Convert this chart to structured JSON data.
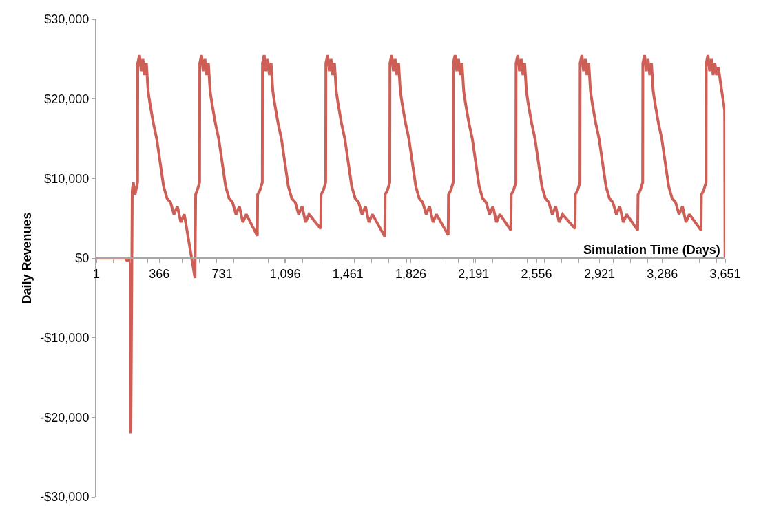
{
  "chart_data": {
    "type": "line",
    "xlabel": "Simulation Time (Days)",
    "ylabel": "Daily Revenues",
    "xlim": [
      1,
      3651
    ],
    "xticks": [
      1,
      366,
      731,
      {
        "value": 1096,
        "label": "1,096"
      },
      {
        "value": 1461,
        "label": "1,461"
      },
      {
        "value": 1826,
        "label": "1,826"
      },
      {
        "value": 2191,
        "label": "2,191"
      },
      {
        "value": 2556,
        "label": "2,556"
      },
      {
        "value": 2921,
        "label": "2,921"
      },
      {
        "value": 3286,
        "label": "3,286"
      },
      {
        "value": 3651,
        "label": "3,651"
      }
    ],
    "ylim": [
      -30000,
      30000
    ],
    "yticks": [
      {
        "value": -30000,
        "label": "-$30,000"
      },
      {
        "value": -20000,
        "label": "-$20,000"
      },
      {
        "value": -10000,
        "label": "-$10,000"
      },
      {
        "value": 0,
        "label": "$0"
      },
      {
        "value": 10000,
        "label": "$10,000"
      },
      {
        "value": 20000,
        "label": "$20,000"
      },
      {
        "value": 30000,
        "label": "$30,000"
      }
    ],
    "marker": "none",
    "line_style": "solid",
    "series": [
      {
        "color": "#cd5f57",
        "x": [
          1,
          170,
          180,
          190,
          200,
          201,
          209,
          215,
          225,
          240,
          241,
          251,
          261,
          271,
          281,
          291,
          301,
          311,
          331,
          351,
          371,
          391,
          411,
          431,
          451,
          471,
          491,
          511,
          573,
          577,
          586,
          600,
          601,
          611,
          621,
          631,
          641,
          651,
          661,
          671,
          691,
          711,
          731,
          751,
          771,
          791,
          811,
          831,
          851,
          871,
          935,
          937,
          950,
          964,
          965,
          975,
          985,
          995,
          1005,
          1015,
          1025,
          1035,
          1055,
          1075,
          1095,
          1115,
          1135,
          1155,
          1175,
          1195,
          1215,
          1235,
          1303,
          1305,
          1318,
          1332,
          1333,
          1343,
          1353,
          1363,
          1373,
          1383,
          1393,
          1403,
          1423,
          1443,
          1463,
          1483,
          1503,
          1523,
          1543,
          1563,
          1583,
          1603,
          1675,
          1677,
          1690,
          1704,
          1705,
          1715,
          1725,
          1735,
          1745,
          1755,
          1765,
          1775,
          1795,
          1815,
          1835,
          1855,
          1875,
          1895,
          1915,
          1935,
          1955,
          1975,
          2043,
          2045,
          2058,
          2072,
          2073,
          2083,
          2093,
          2103,
          2113,
          2123,
          2133,
          2143,
          2163,
          2183,
          2203,
          2223,
          2243,
          2263,
          2283,
          2303,
          2323,
          2343,
          2407,
          2409,
          2422,
          2436,
          2437,
          2447,
          2457,
          2467,
          2477,
          2487,
          2497,
          2507,
          2527,
          2547,
          2567,
          2587,
          2607,
          2627,
          2647,
          2667,
          2687,
          2707,
          2779,
          2781,
          2794,
          2808,
          2809,
          2819,
          2829,
          2839,
          2849,
          2859,
          2869,
          2879,
          2899,
          2919,
          2939,
          2959,
          2979,
          2999,
          3019,
          3039,
          3059,
          3079,
          3143,
          3145,
          3158,
          3172,
          3173,
          3183,
          3193,
          3203,
          3213,
          3223,
          3233,
          3243,
          3263,
          3283,
          3303,
          3323,
          3343,
          3363,
          3383,
          3403,
          3423,
          3443,
          3511,
          3513,
          3526,
          3540,
          3541,
          3551,
          3561,
          3571,
          3581,
          3591,
          3601,
          3611,
          3631,
          3645,
          3648,
          3650
        ],
        "values": [
          0,
          0,
          -400,
          0,
          0,
          -22000,
          8500,
          9500,
          8000,
          9500,
          24500,
          25500,
          23500,
          25000,
          23000,
          24500,
          21000,
          19500,
          17000,
          15000,
          12000,
          9000,
          7500,
          7000,
          5500,
          6500,
          4500,
          5500,
          -2500,
          8000,
          8500,
          9500,
          24500,
          25500,
          23500,
          25000,
          23000,
          24500,
          21000,
          19500,
          17000,
          15000,
          12000,
          9000,
          7500,
          7000,
          5500,
          6500,
          4500,
          5500,
          2800,
          8000,
          8500,
          9500,
          24500,
          25500,
          23500,
          25000,
          23000,
          24500,
          21000,
          19500,
          17000,
          15000,
          12000,
          9000,
          7500,
          7000,
          5500,
          6500,
          4500,
          5500,
          3700,
          8000,
          8500,
          9500,
          24500,
          25500,
          23500,
          25000,
          23000,
          24500,
          21000,
          19500,
          17000,
          15000,
          12000,
          9000,
          7500,
          7000,
          5500,
          6500,
          4500,
          5500,
          2700,
          8000,
          8500,
          9500,
          24500,
          25500,
          23500,
          25000,
          23000,
          24500,
          21000,
          19500,
          17000,
          15000,
          12000,
          9000,
          7500,
          7000,
          5500,
          6500,
          4500,
          5500,
          2900,
          8000,
          8500,
          9500,
          24500,
          25500,
          23500,
          25000,
          23000,
          24500,
          21000,
          19500,
          17000,
          15000,
          12000,
          9000,
          7500,
          7000,
          5500,
          6500,
          4500,
          5500,
          3500,
          8000,
          8500,
          9500,
          24500,
          25500,
          23500,
          25000,
          23000,
          24500,
          21000,
          19500,
          17000,
          15000,
          12000,
          9000,
          7500,
          7000,
          5500,
          6500,
          4500,
          5500,
          3700,
          8000,
          8500,
          9500,
          24500,
          25500,
          23500,
          25000,
          23000,
          24500,
          21000,
          19500,
          17000,
          15000,
          12000,
          9000,
          7500,
          7000,
          5500,
          6500,
          4500,
          5500,
          3500,
          8000,
          8500,
          9500,
          24500,
          25500,
          23500,
          25000,
          23000,
          24500,
          21000,
          19500,
          17000,
          15000,
          12000,
          9000,
          7500,
          7000,
          5500,
          6500,
          4500,
          5500,
          3500,
          8000,
          8500,
          9500,
          24500,
          25500,
          23500,
          25000,
          23000,
          24500,
          23000,
          24000,
          21000,
          19000,
          18500,
          0
        ]
      }
    ]
  }
}
